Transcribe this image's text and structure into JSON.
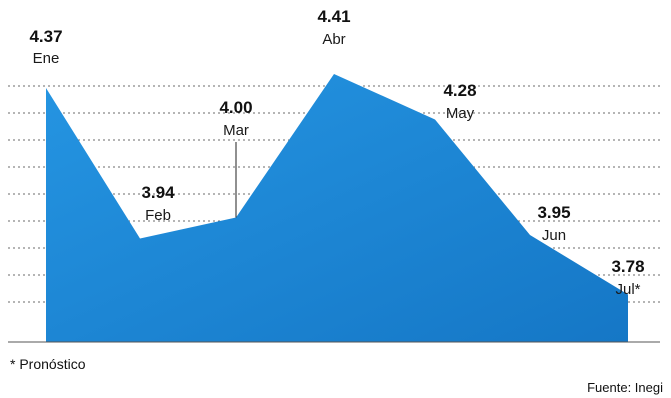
{
  "chart_data": {
    "type": "area",
    "categories": [
      "Ene",
      "Feb",
      "Mar",
      "Abr",
      "May",
      "Jun",
      "Jul*"
    ],
    "values": [
      4.37,
      3.94,
      4.0,
      4.41,
      4.28,
      3.95,
      3.78
    ],
    "value_labels": [
      "4.37",
      "3.94",
      "4.00",
      "4.41",
      "4.28",
      "3.95",
      "3.78"
    ],
    "ylim": [
      3.65,
      4.45
    ],
    "grid": true,
    "title": "",
    "xlabel": "",
    "ylabel": ""
  },
  "footnote": "* Pronóstico",
  "source": "Fuente: Inegi",
  "colors": {
    "area_fill": "#1d8fde",
    "area_fill_dark": "#1576c4",
    "gridline": "#6b6b6b",
    "text": "#111111"
  }
}
